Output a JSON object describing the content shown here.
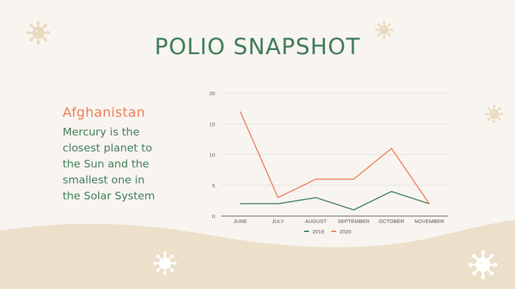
{
  "slide": {
    "title": "POLIO SNAPSHOT",
    "heading": "Afghanistan",
    "body": "Mercury is the closest planet to the Sun and the smallest one in the Solar System"
  },
  "colors": {
    "background": "#f8f5f0",
    "wave": "#ece0cb",
    "title": "#3f7a5b",
    "accent": "#ee7a57",
    "virus": "#e9d9bd"
  },
  "icons": [
    "virus-icon"
  ],
  "chart_data": {
    "type": "line",
    "categories": [
      "JUNE",
      "JULY",
      "AUGUST",
      "SEPTEMBER",
      "OCTOBER",
      "NOVEMBER"
    ],
    "series": [
      {
        "name": "2019",
        "values": [
          2,
          2,
          3,
          1,
          4,
          2
        ],
        "color": "#3f7a5b"
      },
      {
        "name": "2020",
        "values": [
          17,
          3,
          6,
          6,
          11,
          2
        ],
        "color": "#ee7a57"
      }
    ],
    "yticks": [
      "0",
      "5",
      "10",
      "15",
      "20"
    ],
    "ylim": [
      0,
      20
    ],
    "grid": true,
    "legend": "bottom"
  }
}
